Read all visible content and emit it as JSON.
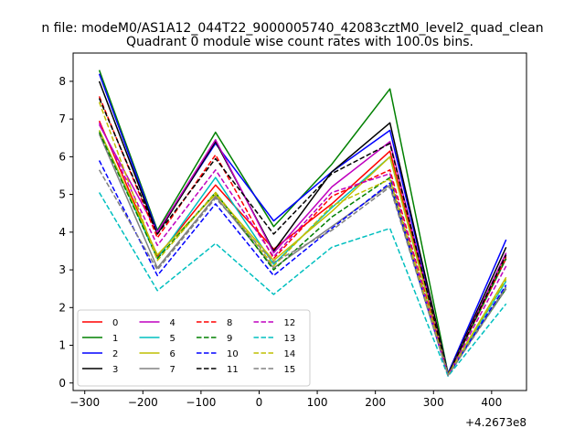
{
  "figure": {
    "suptitle": "n file: modeM0/AS1A12_044T22_9000005740_42083cztM0_level2_quad_clean",
    "offset_label": "+4.2673e8"
  },
  "chart_data": {
    "type": "line",
    "title": "Quadrant 0 module wise count rates with 100.0s bins.",
    "xlabel": "",
    "ylabel": "",
    "xlim": [
      -320,
      460
    ],
    "ylim": [
      -0.2,
      8.75
    ],
    "x_offset": 426730000,
    "x": [
      -275,
      -175,
      -75,
      25,
      125,
      225,
      325,
      425
    ],
    "xticks": [
      -300,
      -200,
      -100,
      0,
      100,
      200,
      300,
      400
    ],
    "xtick_labels": [
      "−300",
      "−200",
      "−100",
      "0",
      "100",
      "200",
      "300",
      "400"
    ],
    "yticks": [
      0,
      1,
      2,
      3,
      4,
      5,
      6,
      7,
      8
    ],
    "ytick_labels": [
      "0",
      "1",
      "2",
      "3",
      "4",
      "5",
      "6",
      "7",
      "8"
    ],
    "grid": false,
    "legend_position": "lower-left",
    "legend_columns": 4,
    "series": [
      {
        "name": "0",
        "color": "#ff0000",
        "dash": "solid",
        "values": [
          6.95,
          3.35,
          5.25,
          3.55,
          4.75,
          6.15,
          0.22,
          3.3
        ]
      },
      {
        "name": "1",
        "color": "#008000",
        "dash": "solid",
        "values": [
          8.3,
          4.05,
          6.65,
          4.15,
          5.8,
          7.8,
          0.25,
          2.5
        ]
      },
      {
        "name": "2",
        "color": "#0000ff",
        "dash": "solid",
        "values": [
          8.2,
          4.0,
          6.35,
          4.3,
          5.6,
          6.7,
          0.26,
          3.8
        ]
      },
      {
        "name": "3",
        "color": "#000000",
        "dash": "solid",
        "values": [
          8.0,
          3.95,
          6.4,
          3.5,
          5.6,
          6.9,
          0.23,
          3.6
        ]
      },
      {
        "name": "4",
        "color": "#bf00bf",
        "dash": "solid",
        "values": [
          6.85,
          4.0,
          6.45,
          3.45,
          5.2,
          6.4,
          0.22,
          3.45
        ]
      },
      {
        "name": "5",
        "color": "#00bfbf",
        "dash": "solid",
        "values": [
          6.7,
          3.3,
          5.45,
          3.15,
          4.65,
          6.0,
          0.21,
          2.7
        ]
      },
      {
        "name": "6",
        "color": "#bfbf00",
        "dash": "solid",
        "values": [
          6.7,
          3.4,
          5.0,
          3.25,
          4.55,
          6.0,
          0.23,
          2.8
        ]
      },
      {
        "name": "7",
        "color": "#808080",
        "dash": "solid",
        "values": [
          6.6,
          3.05,
          4.95,
          3.05,
          4.15,
          5.25,
          0.2,
          2.55
        ]
      },
      {
        "name": "8",
        "color": "#ff0000",
        "dash": "dashed",
        "values": [
          7.6,
          3.85,
          6.05,
          3.3,
          4.95,
          5.65,
          0.22,
          3.35
        ]
      },
      {
        "name": "9",
        "color": "#008000",
        "dash": "dashed",
        "values": [
          6.65,
          3.3,
          5.05,
          3.0,
          4.4,
          5.45,
          0.23,
          3.3
        ]
      },
      {
        "name": "10",
        "color": "#0000ff",
        "dash": "dashed",
        "values": [
          5.9,
          2.85,
          4.75,
          2.85,
          4.1,
          5.3,
          0.2,
          2.6
        ]
      },
      {
        "name": "11",
        "color": "#000000",
        "dash": "dashed",
        "values": [
          7.55,
          3.95,
          5.95,
          3.95,
          5.55,
          6.35,
          0.22,
          3.4
        ]
      },
      {
        "name": "12",
        "color": "#bf00bf",
        "dash": "dashed",
        "values": [
          6.9,
          3.65,
          5.65,
          3.35,
          5.05,
          5.55,
          0.2,
          3.1
        ]
      },
      {
        "name": "13",
        "color": "#00bfbf",
        "dash": "dashed",
        "values": [
          5.05,
          2.45,
          3.7,
          2.35,
          3.6,
          4.1,
          0.18,
          2.1
        ]
      },
      {
        "name": "14",
        "color": "#bfbf00",
        "dash": "dashed",
        "values": [
          7.45,
          3.25,
          5.05,
          3.1,
          4.7,
          5.4,
          0.22,
          2.75
        ]
      },
      {
        "name": "15",
        "color": "#808080",
        "dash": "dashed",
        "values": [
          5.65,
          3.0,
          4.9,
          3.2,
          4.05,
          5.2,
          0.2,
          2.5
        ]
      }
    ]
  }
}
